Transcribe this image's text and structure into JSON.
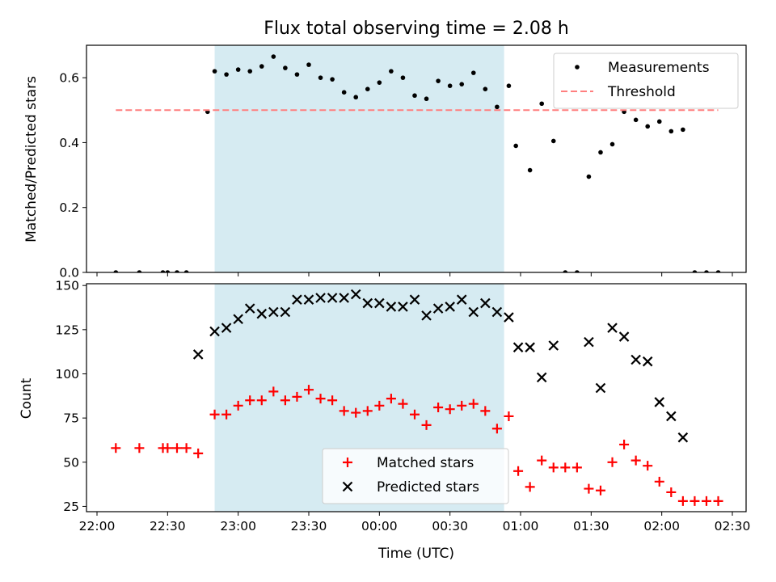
{
  "colors": {
    "band": "#add8e6",
    "measurement": "#000000",
    "threshold": "#ff7f7f",
    "matched": "#ff0000",
    "predicted": "#000000"
  },
  "chart_data": [
    {
      "type": "scatter",
      "title": "Flux total observing time = 2.08 h",
      "xlabel": "",
      "ylabel": "Matched/Predicted stars",
      "ylim": [
        0,
        0.7
      ],
      "yticks": [
        0.0,
        0.2,
        0.4,
        0.6
      ],
      "ytick_labels": [
        "0.0",
        "0.2",
        "0.4",
        "0.6"
      ],
      "x_range": [
        "22:00",
        "02:30"
      ],
      "xtick_labels_shown": false,
      "observing_window": [
        "22:50",
        "00:53"
      ],
      "legend_position": "upper right",
      "series": [
        {
          "name": "Measurements",
          "marker": "dot",
          "x": [
            "22:08",
            "22:18",
            "22:28",
            "22:30",
            "22:34",
            "22:38",
            "22:47",
            "22:50",
            "22:55",
            "23:00",
            "23:05",
            "23:10",
            "23:15",
            "23:20",
            "23:25",
            "23:30",
            "23:35",
            "23:40",
            "23:45",
            "23:50",
            "23:55",
            "00:00",
            "00:05",
            "00:10",
            "00:15",
            "00:20",
            "00:25",
            "00:30",
            "00:35",
            "00:40",
            "00:45",
            "00:50",
            "00:55",
            "00:58",
            "01:04",
            "01:09",
            "01:14",
            "01:19",
            "01:24",
            "01:29",
            "01:34",
            "01:39",
            "01:44",
            "01:49",
            "01:54",
            "01:59",
            "02:04",
            "02:09",
            "02:14",
            "02:19",
            "02:24"
          ],
          "y": [
            0.0,
            0.0,
            0.0,
            0.0,
            0.0,
            0.0,
            0.495,
            0.62,
            0.61,
            0.625,
            0.62,
            0.635,
            0.665,
            0.63,
            0.61,
            0.64,
            0.6,
            0.595,
            0.555,
            0.54,
            0.565,
            0.585,
            0.62,
            0.6,
            0.545,
            0.535,
            0.59,
            0.575,
            0.58,
            0.615,
            0.565,
            0.51,
            0.575,
            0.39,
            0.315,
            0.52,
            0.405,
            0.0,
            0.0,
            0.295,
            0.37,
            0.395,
            0.495,
            0.47,
            0.45,
            0.465,
            0.435,
            0.44,
            0.0,
            0.0,
            0.0
          ]
        },
        {
          "name": "Threshold",
          "style": "dashed",
          "x": [
            "22:08",
            "02:24"
          ],
          "y": [
            0.5,
            0.5
          ]
        }
      ]
    },
    {
      "type": "scatter",
      "title": "",
      "xlabel": "Time (UTC)",
      "ylabel": "Count",
      "ylim": [
        22,
        151
      ],
      "yticks": [
        25,
        50,
        75,
        100,
        125,
        150
      ],
      "ytick_labels": [
        "25",
        "50",
        "75",
        "100",
        "125",
        "150"
      ],
      "x_range": [
        "22:00",
        "02:30"
      ],
      "xticks": [
        "22:00",
        "22:30",
        "23:00",
        "23:30",
        "00:00",
        "00:30",
        "01:00",
        "01:30",
        "02:00",
        "02:30"
      ],
      "xtick_labels": [
        "22:00",
        "22:30",
        "23:00",
        "23:30",
        "00:00",
        "00:30",
        "01:00",
        "01:30",
        "02:00",
        "02:30"
      ],
      "observing_window": [
        "22:50",
        "00:53"
      ],
      "legend_position": "lower center",
      "series": [
        {
          "name": "Matched stars",
          "marker": "plus",
          "x": [
            "22:08",
            "22:18",
            "22:28",
            "22:30",
            "22:34",
            "22:38",
            "22:43",
            "22:50",
            "22:55",
            "23:00",
            "23:05",
            "23:10",
            "23:15",
            "23:20",
            "23:25",
            "23:30",
            "23:35",
            "23:40",
            "23:45",
            "23:50",
            "23:55",
            "00:00",
            "00:05",
            "00:10",
            "00:15",
            "00:20",
            "00:25",
            "00:30",
            "00:35",
            "00:40",
            "00:45",
            "00:50",
            "00:55",
            "00:59",
            "01:04",
            "01:09",
            "01:14",
            "01:19",
            "01:24",
            "01:29",
            "01:34",
            "01:39",
            "01:44",
            "01:49",
            "01:54",
            "01:59",
            "02:04",
            "02:09",
            "02:14",
            "02:19",
            "02:24"
          ],
          "y": [
            58,
            58,
            58,
            58,
            58,
            58,
            55,
            77,
            77,
            82,
            85,
            85,
            90,
            85,
            87,
            91,
            86,
            85,
            79,
            78,
            79,
            82,
            86,
            83,
            77,
            71,
            81,
            80,
            82,
            83,
            79,
            69,
            76,
            45,
            36,
            51,
            47,
            47,
            47,
            35,
            34,
            50,
            60,
            51,
            48,
            39,
            33,
            28,
            28,
            28,
            28
          ]
        },
        {
          "name": "Predicted stars",
          "marker": "x",
          "x": [
            "22:43",
            "22:50",
            "22:55",
            "23:00",
            "23:05",
            "23:10",
            "23:15",
            "23:20",
            "23:25",
            "23:30",
            "23:35",
            "23:40",
            "23:45",
            "23:50",
            "23:55",
            "00:00",
            "00:05",
            "00:10",
            "00:15",
            "00:20",
            "00:25",
            "00:30",
            "00:35",
            "00:40",
            "00:45",
            "00:50",
            "00:55",
            "00:59",
            "01:04",
            "01:09",
            "01:14",
            "01:29",
            "01:34",
            "01:39",
            "01:44",
            "01:49",
            "01:54",
            "01:59",
            "02:04",
            "02:09"
          ],
          "y": [
            111,
            124,
            126,
            131,
            137,
            134,
            135,
            135,
            142,
            142,
            143,
            143,
            143,
            145,
            140,
            140,
            138,
            138,
            142,
            133,
            137,
            138,
            142,
            135,
            140,
            135,
            132,
            115,
            115,
            98,
            116,
            118,
            92,
            126,
            121,
            108,
            107,
            84,
            76,
            64
          ]
        }
      ]
    }
  ]
}
